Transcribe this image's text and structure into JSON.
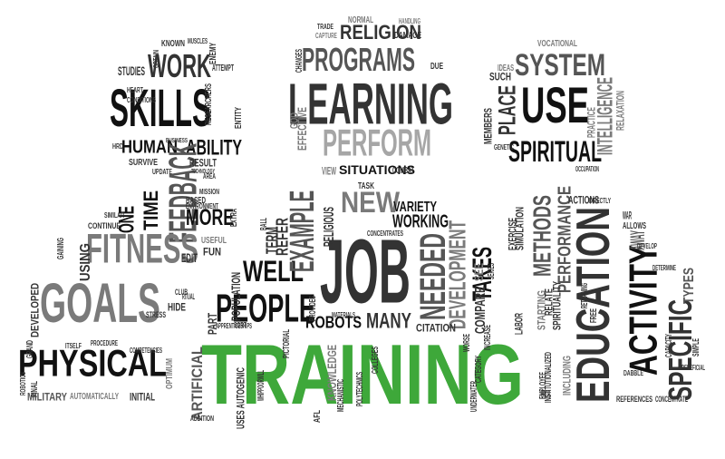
{
  "colors": {
    "black": "#111111",
    "dark": "#333333",
    "mid": "#555555",
    "gray": "#7a7a7a",
    "light": "#a6a6a6",
    "accent": "#3ea83a"
  },
  "words": [
    {
      "id": "training",
      "text": "TRAINING"
    },
    {
      "id": "job",
      "text": "JOB"
    },
    {
      "id": "learning",
      "text": "LEARNING"
    },
    {
      "id": "programs",
      "text": "PROGRAMS"
    },
    {
      "id": "perform",
      "text": "PERFORM"
    },
    {
      "id": "religion",
      "text": "RELIGION"
    },
    {
      "id": "skills",
      "text": "SKILLS"
    },
    {
      "id": "work",
      "text": "WORK"
    },
    {
      "id": "use",
      "text": "USE"
    },
    {
      "id": "place",
      "text": "PLACE"
    },
    {
      "id": "system",
      "text": "SYSTEM"
    },
    {
      "id": "spiritual",
      "text": "SPIRITUAL"
    },
    {
      "id": "intelligence",
      "text": "INTELLIGENCE"
    },
    {
      "id": "human",
      "text": "HUMAN"
    },
    {
      "id": "ability",
      "text": "ABILITY"
    },
    {
      "id": "feedback",
      "text": "FEEDBACK"
    },
    {
      "id": "fitness",
      "text": "FITNESS"
    },
    {
      "id": "goals",
      "text": "GOALS"
    },
    {
      "id": "physical",
      "text": "PHYSICAL"
    },
    {
      "id": "more",
      "text": "MORE"
    },
    {
      "id": "time",
      "text": "TIME"
    },
    {
      "id": "one",
      "text": "ONE"
    },
    {
      "id": "people",
      "text": "PEOPLE"
    },
    {
      "id": "well",
      "text": "WELL"
    },
    {
      "id": "example",
      "text": "EXAMPLE"
    },
    {
      "id": "new",
      "text": "NEW"
    },
    {
      "id": "variety",
      "text": "VARIETY"
    },
    {
      "id": "working",
      "text": "WORKING"
    },
    {
      "id": "needed",
      "text": "NEEDED"
    },
    {
      "id": "development",
      "text": "DEVELOPMENT"
    },
    {
      "id": "takes",
      "text": "TAKES"
    },
    {
      "id": "many",
      "text": "MANY"
    },
    {
      "id": "robots",
      "text": "ROBOTS"
    },
    {
      "id": "education",
      "text": "EDUCATION"
    },
    {
      "id": "activity",
      "text": "ACTIVITY"
    },
    {
      "id": "specific",
      "text": "SPECIFIC"
    },
    {
      "id": "performance",
      "text": "PERFORMANCE"
    },
    {
      "id": "methods",
      "text": "METHODS"
    },
    {
      "id": "away",
      "text": "AWAY"
    },
    {
      "id": "types",
      "text": "TYPES"
    },
    {
      "id": "artificial",
      "text": "ARTIFICIAL"
    },
    {
      "id": "situations",
      "text": "SITUATIONS"
    },
    {
      "id": "studies",
      "text": "STUDIES"
    },
    {
      "id": "known",
      "text": "KNOWN"
    },
    {
      "id": "using",
      "text": "USING"
    },
    {
      "id": "edit",
      "text": "EDIT"
    },
    {
      "id": "fun",
      "text": "FUN"
    },
    {
      "id": "useful",
      "text": "USEFUL"
    },
    {
      "id": "term",
      "text": "TERM"
    },
    {
      "id": "refer",
      "text": "REFER"
    },
    {
      "id": "religious",
      "text": "RELIGIOUS"
    },
    {
      "id": "citation",
      "text": "CITATION"
    },
    {
      "id": "compare",
      "text": "COMPARE"
    },
    {
      "id": "see",
      "text": "SEE"
    },
    {
      "id": "knowledge",
      "text": "KNOWLEDGE"
    },
    {
      "id": "uses_autogenic",
      "text": "USES AUTOGENIC"
    },
    {
      "id": "population",
      "text": "POPULATION"
    },
    {
      "id": "part",
      "text": "PART"
    },
    {
      "id": "military",
      "text": "MILITARY"
    },
    {
      "id": "automatically",
      "text": "AUTOMATICALLY"
    },
    {
      "id": "initial",
      "text": "INITIAL"
    },
    {
      "id": "developed",
      "text": "DEVELOPED"
    },
    {
      "id": "result",
      "text": "RESULT"
    },
    {
      "id": "survive",
      "text": "SURVIVE"
    },
    {
      "id": "task",
      "text": "TASK"
    },
    {
      "id": "view",
      "text": "VIEW"
    },
    {
      "id": "combat",
      "text": "COMBAT"
    },
    {
      "id": "effective",
      "text": "EFFECTIVE"
    },
    {
      "id": "god",
      "text": "GOD"
    },
    {
      "id": "due",
      "text": "DUE"
    },
    {
      "id": "normal",
      "text": "NORMAL"
    },
    {
      "id": "damage",
      "text": "DAMAGE"
    },
    {
      "id": "trade",
      "text": "TRADE"
    },
    {
      "id": "such",
      "text": "SUCH"
    },
    {
      "id": "ideas",
      "text": "IDEAS"
    },
    {
      "id": "vocational",
      "text": "VOCATIONAL"
    },
    {
      "id": "practice",
      "text": "PRACTICE"
    },
    {
      "id": "relaxation",
      "text": "RELAXATION"
    },
    {
      "id": "members",
      "text": "MEMBERS"
    },
    {
      "id": "exercise",
      "text": "EXERCISE"
    },
    {
      "id": "simulation",
      "text": "SIMULATION"
    },
    {
      "id": "actions",
      "text": "ACTIONS"
    },
    {
      "id": "allows",
      "text": "ALLOWS"
    },
    {
      "id": "starting",
      "text": "STARTING"
    },
    {
      "id": "relate",
      "text": "RELATE"
    },
    {
      "id": "spirituality",
      "text": "SPIRITUALITY"
    },
    {
      "id": "including",
      "text": "INCLUDING"
    },
    {
      "id": "references",
      "text": "REFERENCES"
    },
    {
      "id": "concentrate",
      "text": "CONCENTRATE"
    },
    {
      "id": "labor",
      "text": "LABOR"
    },
    {
      "id": "stress",
      "text": "STRESS"
    },
    {
      "id": "optimum",
      "text": "OPTIMUM"
    },
    {
      "id": "hide",
      "text": "HIDE"
    },
    {
      "id": "club",
      "text": "CLUB"
    },
    {
      "id": "ritual",
      "text": "RITUAL"
    },
    {
      "id": "based",
      "text": "BASED"
    },
    {
      "id": "extra",
      "text": "EXTRA"
    },
    {
      "id": "continue",
      "text": "CONTINUE"
    },
    {
      "id": "attempt",
      "text": "ATTEMPT"
    },
    {
      "id": "enemy",
      "text": "ENEMY"
    },
    {
      "id": "researchers",
      "text": "RESEARCHERS"
    },
    {
      "id": "entity",
      "text": "ENTITY"
    },
    {
      "id": "technology",
      "text": "TECHNOLOGY"
    },
    {
      "id": "concentrates",
      "text": "CONCENTRATES"
    },
    {
      "id": "materials",
      "text": "MATERIALS"
    },
    {
      "id": "afl",
      "text": "AFL"
    },
    {
      "id": "provides",
      "text": "PROVIDES"
    },
    {
      "id": "apprenticeships",
      "text": "APPRENTICESHIPS"
    },
    {
      "id": "addition",
      "text": "ADDITION"
    },
    {
      "id": "series",
      "text": "SERIES"
    },
    {
      "id": "increase",
      "text": "INCREASE"
    },
    {
      "id": "worse",
      "text": "WORSE"
    },
    {
      "id": "capture",
      "text": "CAPTURE"
    },
    {
      "id": "handling",
      "text": "HANDLING"
    },
    {
      "id": "changes",
      "text": "CHANGES"
    },
    {
      "id": "occupation",
      "text": "OCCUPATION"
    },
    {
      "id": "genetic",
      "text": "GENETIC"
    },
    {
      "id": "retraining",
      "text": "RETRAINING"
    },
    {
      "id": "determine",
      "text": "DETERMINE"
    },
    {
      "id": "beneficial",
      "text": "BENEFICIAL"
    },
    {
      "id": "free",
      "text": "FREE"
    },
    {
      "id": "war",
      "text": "WAR"
    },
    {
      "id": "procedure",
      "text": "PROCEDURE"
    },
    {
      "id": "competencies",
      "text": "COMPETENCIES"
    },
    {
      "id": "grand",
      "text": "GRAND"
    },
    {
      "id": "final",
      "text": "FINAL"
    },
    {
      "id": "gaining",
      "text": "GAINING"
    },
    {
      "id": "similar",
      "text": "SIMILAR"
    },
    {
      "id": "environment",
      "text": "ENVIRONMENT"
    },
    {
      "id": "ball",
      "text": "BALL"
    },
    {
      "id": "sort",
      "text": "SORT"
    },
    {
      "id": "update",
      "text": "UPDATE"
    },
    {
      "id": "area",
      "text": "AREA"
    },
    {
      "id": "mission",
      "text": "MISSION"
    },
    {
      "id": "heart",
      "text": "HEART"
    },
    {
      "id": "conditions",
      "text": "CONDITIONS"
    },
    {
      "id": "hrd",
      "text": "HRD"
    },
    {
      "id": "muscles",
      "text": "MUSCLES"
    },
    {
      "id": "obtain",
      "text": "OBTAIN"
    },
    {
      "id": "business",
      "text": "BUSINESS"
    },
    {
      "id": "itself",
      "text": "ITSELF"
    },
    {
      "id": "robotics",
      "text": "ROBOTICS"
    },
    {
      "id": "pictorial",
      "text": "PICTORIAL"
    },
    {
      "id": "whippoorwill",
      "text": "WHIPPOORWILL"
    },
    {
      "id": "mechanistic",
      "text": "MECHANISTIC"
    },
    {
      "id": "polytechnics",
      "text": "POLYTECHNICS"
    },
    {
      "id": "colleges",
      "text": "COLLEGES"
    },
    {
      "id": "underwater",
      "text": "UNDERWATER"
    },
    {
      "id": "category",
      "text": "CATEGORY"
    },
    {
      "id": "employee",
      "text": "EMPLOYEE"
    },
    {
      "id": "institutionalized",
      "text": "INSTITUTIONALIZED"
    },
    {
      "id": "directly",
      "text": "DIRECTLY"
    },
    {
      "id": "prior",
      "text": "PRIOR"
    },
    {
      "id": "dabble",
      "text": "DABBLE"
    },
    {
      "id": "capacity",
      "text": "CAPACITY"
    },
    {
      "id": "develop",
      "text": "DEVELOP"
    },
    {
      "id": "simple",
      "text": "SIMPLE"
    }
  ]
}
